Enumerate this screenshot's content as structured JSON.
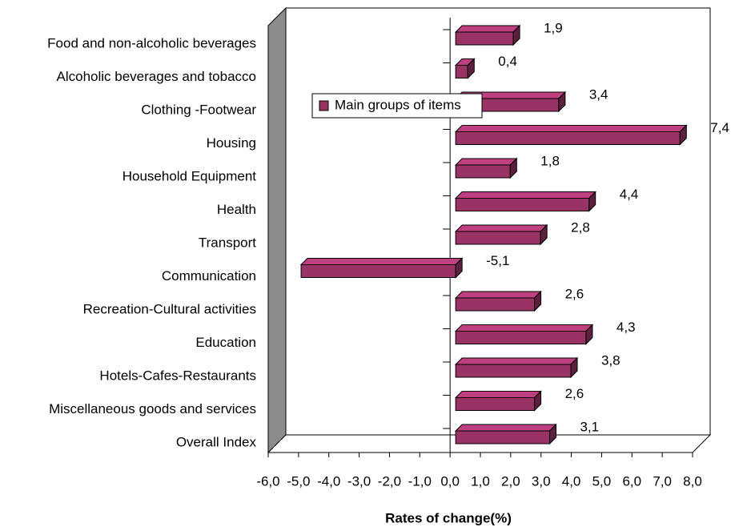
{
  "chart_data": {
    "type": "bar",
    "orientation": "horizontal",
    "xlabel": "Rates of change(%)",
    "categories": [
      "Food and non-alcoholic beverages",
      "Alcoholic beverages and tobacco",
      "Clothing -Footwear",
      "Housing",
      "Household Equipment",
      "Health",
      "Transport",
      "Communication",
      "Recreation-Cultural activities",
      "Education",
      "Hotels-Cafes-Restaurants",
      "Miscellaneous goods and services",
      "Overall Index"
    ],
    "series": [
      {
        "name": "Main groups of items",
        "color": "#993366",
        "values": [
          1.9,
          0.4,
          3.4,
          7.4,
          1.8,
          4.4,
          2.8,
          -5.1,
          2.6,
          4.3,
          3.8,
          2.6,
          3.1
        ],
        "value_labels": [
          "1,9",
          "0,4",
          "3,4",
          "7,4",
          "1,8",
          "4,4",
          "2,8",
          "-5,1",
          "2,6",
          "4,3",
          "3,8",
          "2,6",
          "3,1"
        ]
      }
    ],
    "xlim": [
      -6,
      8
    ],
    "xticks": [
      {
        "value": -6,
        "label": "-6,0"
      },
      {
        "value": -5,
        "label": "-5,0"
      },
      {
        "value": -4,
        "label": "-4,0"
      },
      {
        "value": -3,
        "label": "-3,0"
      },
      {
        "value": -2,
        "label": "-2,0"
      },
      {
        "value": -1,
        "label": "-1,0"
      },
      {
        "value": 0,
        "label": "0,0"
      },
      {
        "value": 1,
        "label": "1,0"
      },
      {
        "value": 2,
        "label": "2,0"
      },
      {
        "value": 3,
        "label": "3,0"
      },
      {
        "value": 4,
        "label": "4,0"
      },
      {
        "value": 5,
        "label": "5,0"
      },
      {
        "value": 6,
        "label": "6,0"
      },
      {
        "value": 7,
        "label": "7,0"
      },
      {
        "value": 8,
        "label": "8,0"
      }
    ],
    "legend": "upper left",
    "grid": false
  }
}
